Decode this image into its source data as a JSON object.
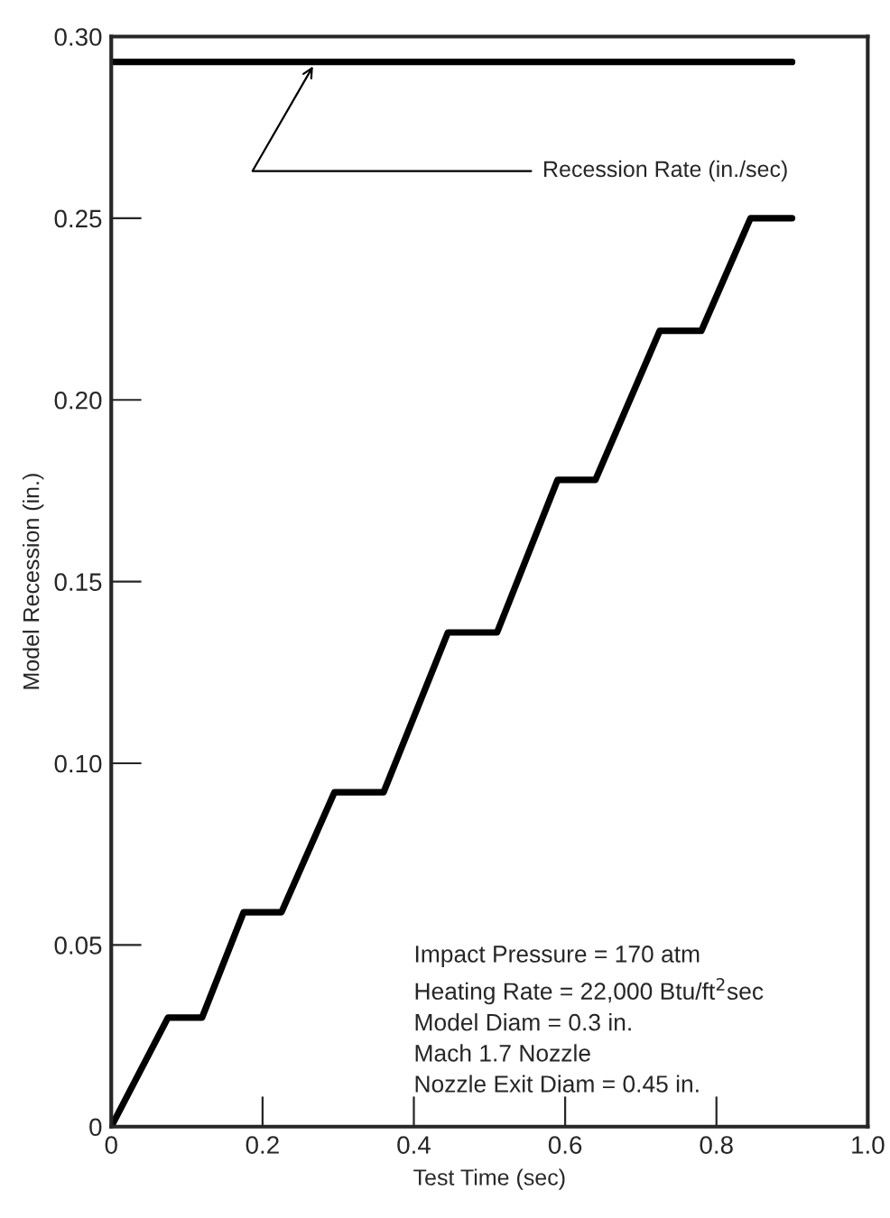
{
  "chart_data": {
    "type": "line",
    "xlabel": "Test Time (sec)",
    "ylabel": "Model Recession (in.)",
    "xlim": [
      0,
      1.0
    ],
    "ylim": [
      0,
      0.3
    ],
    "xticks": [
      0,
      0.2,
      0.4,
      0.6,
      0.8,
      {
        "value": 1.0,
        "label": "1.0"
      }
    ],
    "yticks": [
      0,
      0.05,
      {
        "value": 0.1,
        "label": "0.10"
      },
      0.15,
      {
        "value": 0.2,
        "label": "0.20"
      },
      0.25,
      {
        "value": 0.3,
        "label": "0.30"
      }
    ],
    "grid": false,
    "legend": false,
    "marker": "none",
    "line_style": "solid",
    "series": [
      {
        "name": "Recession Rate (in./sec)",
        "color": "#000000",
        "x": [
          0,
          0.9
        ],
        "values": [
          0.293,
          0.293
        ]
      },
      {
        "color": "#000000",
        "x": [
          0,
          0.075,
          0.12,
          0.175,
          0.225,
          0.295,
          0.36,
          0.445,
          0.51,
          0.59,
          0.64,
          0.725,
          0.78,
          0.845,
          0.9
        ],
        "values": [
          0,
          0.03,
          0.03,
          0.059,
          0.059,
          0.092,
          0.092,
          0.136,
          0.136,
          0.178,
          0.178,
          0.219,
          0.219,
          0.25,
          0.25
        ]
      }
    ],
    "annotations": [
      "Impact Pressure = 170 atm\nHeating Rate = 22,000 Btu/ft$^{2}$sec\nModel Diam = 0.3 in.\nMach 1.7 Nozzle\nNozzle Exit Diam = 0.45 in."
    ]
  }
}
